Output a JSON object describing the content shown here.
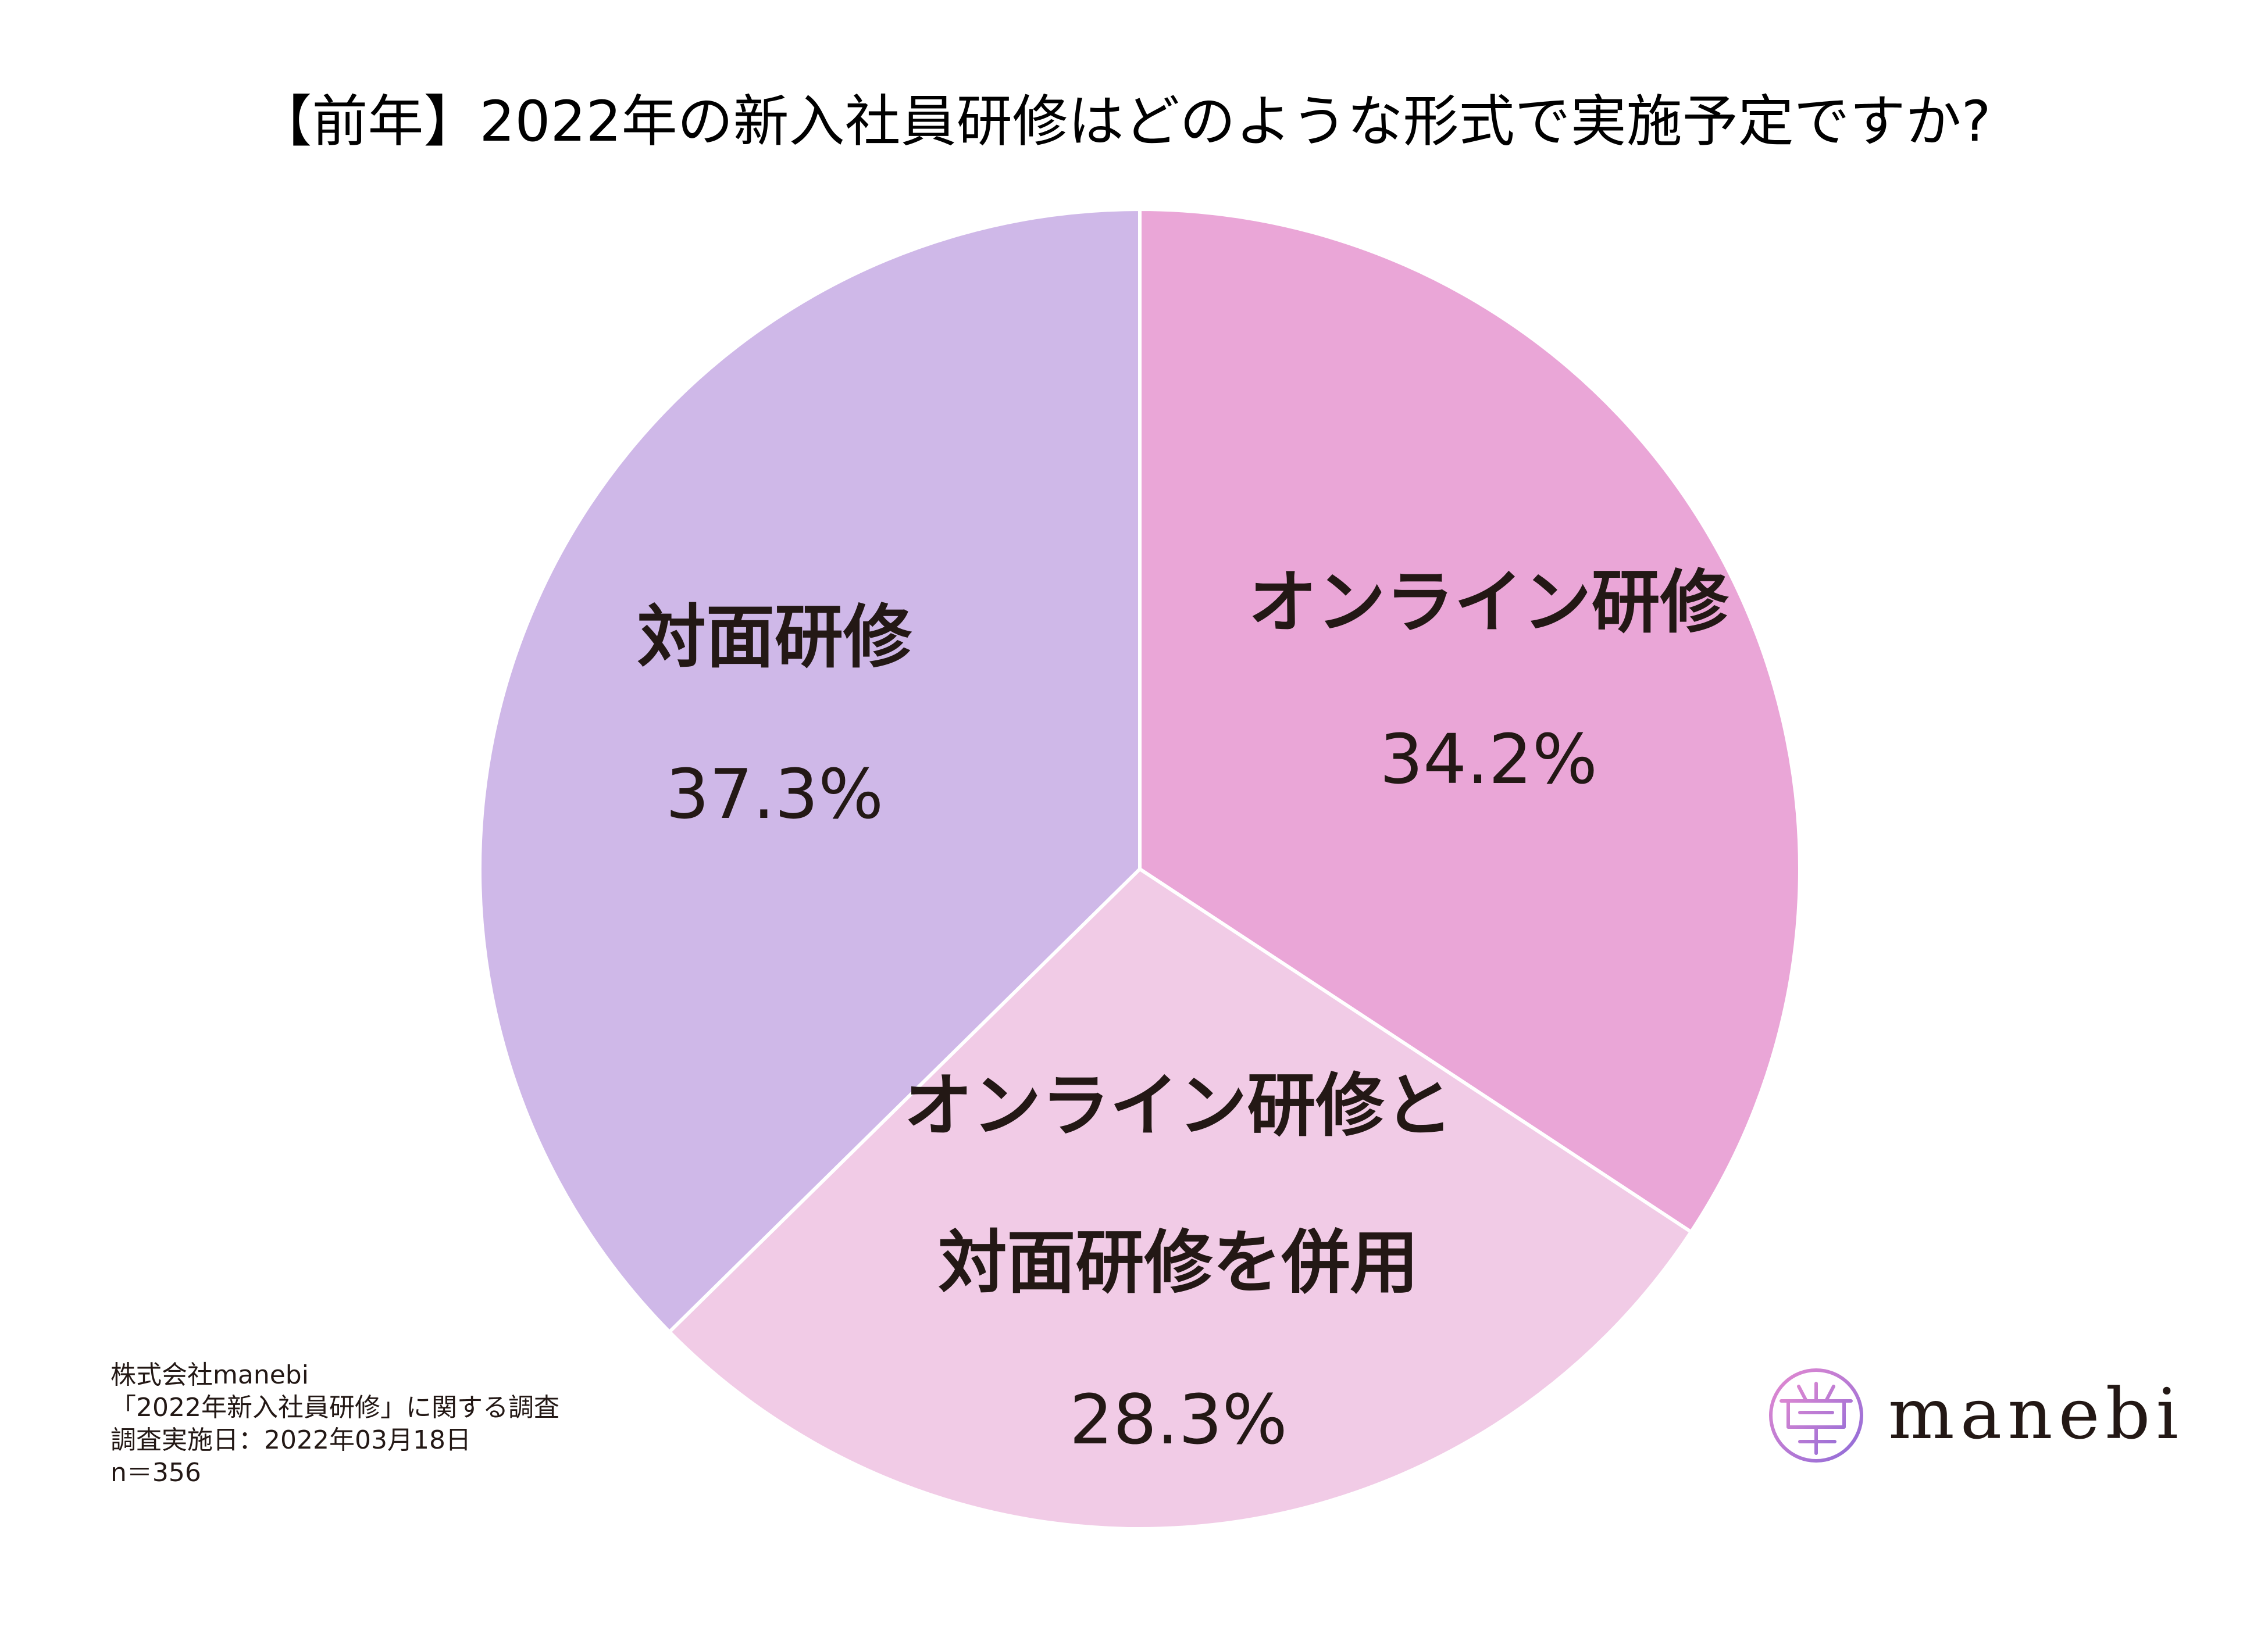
{
  "chart_data": {
    "type": "pie",
    "title": "【前年】2022年の新入社員研修はどのような形式で実施予定ですか?",
    "slices": [
      {
        "label": [
          "オンライン研修"
        ],
        "value": 34.2,
        "value_label": "34.2%",
        "color": "#EAA6D7"
      },
      {
        "label": [
          "オンライン研修と",
          "対面研修を併用"
        ],
        "value": 28.3,
        "value_label": "28.3%",
        "color": "#F1CBE6"
      },
      {
        "label": [
          "対面研修"
        ],
        "value": 37.3,
        "value_label": "37.3%",
        "color": "#CFB8E8"
      }
    ],
    "start_angle": "12 o'clock",
    "direction": "clockwise"
  },
  "source_note": {
    "company": "株式会社manebi",
    "survey": "「2022年新入社員研修」に関する調査",
    "date": "調査実施日：2022年03月18日",
    "sample": "n＝356"
  },
  "logo": {
    "text": "manebi",
    "icon": "manebi-logo-icon"
  }
}
